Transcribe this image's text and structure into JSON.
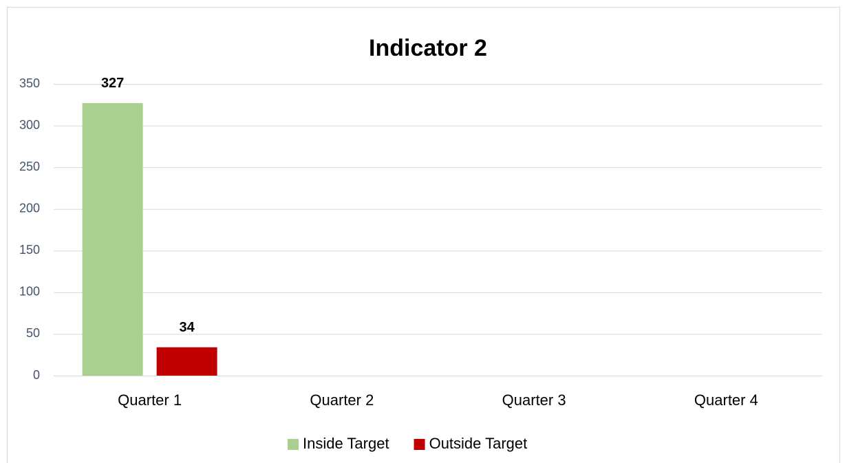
{
  "chart_data": {
    "type": "bar",
    "title": "Indicator 2",
    "categories": [
      "Quarter 1",
      "Quarter 2",
      "Quarter 3",
      "Quarter 4"
    ],
    "series": [
      {
        "name": "Inside Target",
        "color": "#a9d08e",
        "values": [
          327,
          null,
          null,
          null
        ]
      },
      {
        "name": "Outside Target",
        "color": "#c00000",
        "values": [
          34,
          null,
          null,
          null
        ]
      }
    ],
    "ylim": [
      0,
      350
    ],
    "yticks": [
      0,
      50,
      100,
      150,
      200,
      250,
      300,
      350
    ],
    "grid": true,
    "legend": "bottom"
  }
}
